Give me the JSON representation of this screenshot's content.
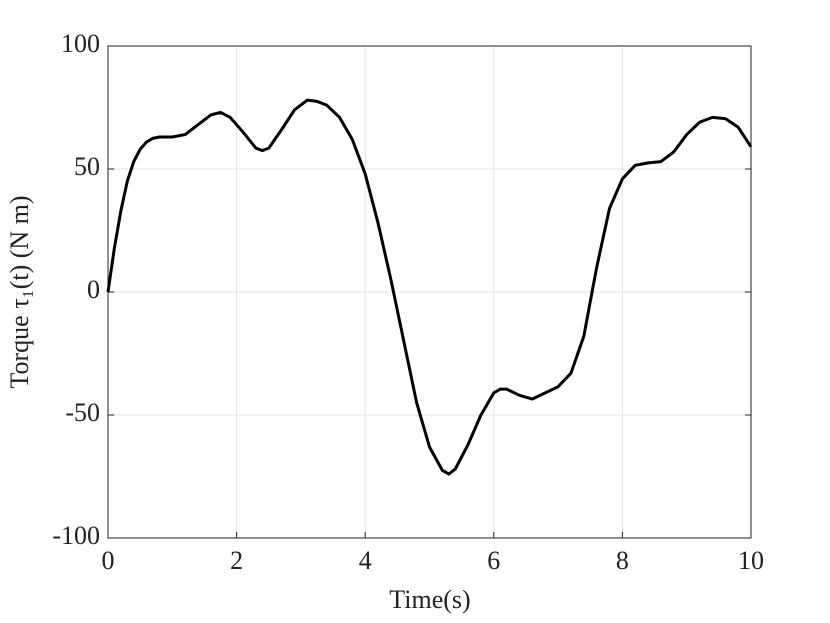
{
  "chart_data": {
    "type": "line",
    "x_label": "Time(s)",
    "y_label": "Torque τ₁(t) (N m)",
    "x": [
      0,
      0.1,
      0.2,
      0.3,
      0.4,
      0.5,
      0.6,
      0.7,
      0.8,
      1.0,
      1.2,
      1.4,
      1.6,
      1.75,
      1.9,
      2.1,
      2.3,
      2.4,
      2.5,
      2.7,
      2.9,
      3.1,
      3.25,
      3.4,
      3.6,
      3.8,
      4.0,
      4.2,
      4.4,
      4.6,
      4.8,
      5.0,
      5.2,
      5.3,
      5.4,
      5.6,
      5.8,
      6.0,
      6.1,
      6.2,
      6.4,
      6.6,
      6.8,
      7.0,
      7.2,
      7.4,
      7.6,
      7.8,
      8.0,
      8.2,
      8.4,
      8.6,
      8.8,
      9.0,
      9.2,
      9.4,
      9.6,
      9.8,
      10.0
    ],
    "series": [
      {
        "color": "#000000",
        "values": [
          0,
          18,
          33,
          45,
          53,
          58,
          61,
          62.5,
          63,
          63,
          64,
          68,
          72,
          73,
          71,
          65,
          58.5,
          57.5,
          58.5,
          66,
          74,
          78,
          77.5,
          76,
          71,
          62,
          48,
          28,
          5,
          -20,
          -45,
          -63,
          -72.5,
          -74,
          -72,
          -62,
          -50,
          -41,
          -39.5,
          -39.5,
          -42,
          -43.5,
          -41,
          -38.5,
          -33,
          -18,
          10,
          34,
          46,
          51.5,
          52.5,
          53,
          57,
          64,
          69,
          71,
          70.5,
          67,
          59
        ]
      }
    ],
    "xlim": [
      0,
      10
    ],
    "xticks": [
      0,
      2,
      4,
      6,
      8,
      10
    ],
    "ylim": [
      -100,
      100
    ],
    "yticks": [
      -100,
      -50,
      0,
      50,
      100
    ],
    "grid": true
  }
}
